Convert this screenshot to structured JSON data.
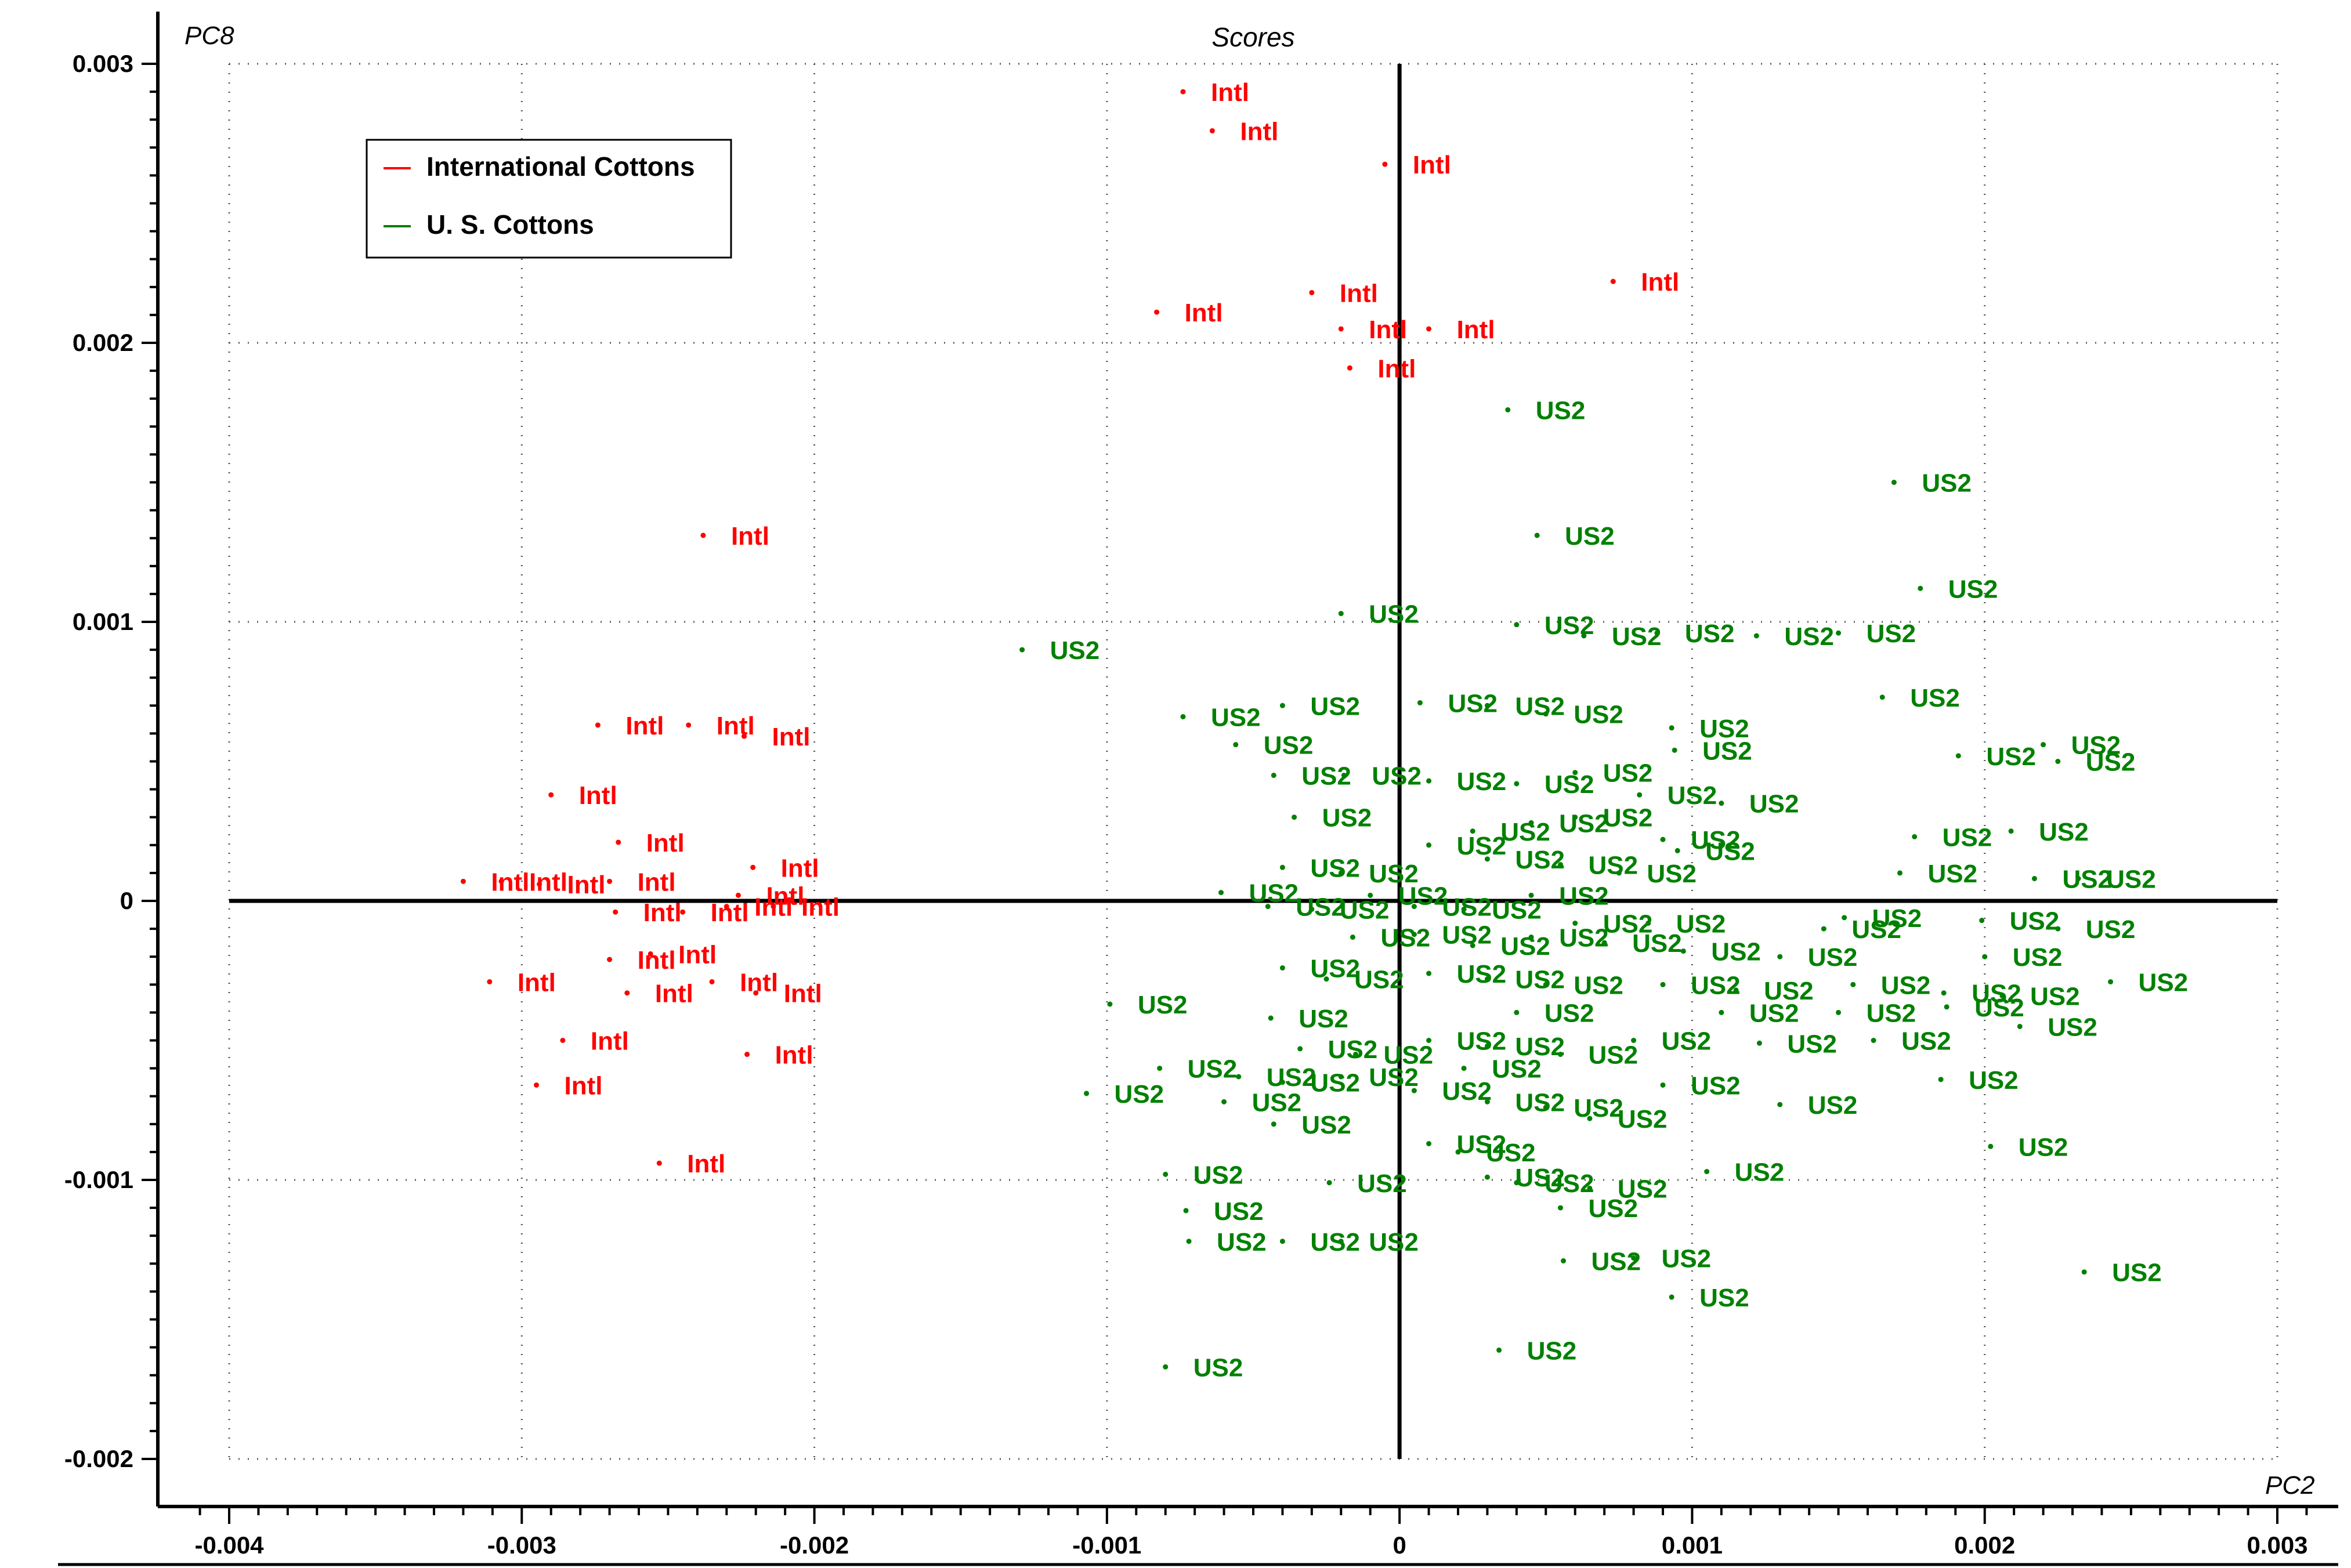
{
  "chart_data": {
    "type": "scatter",
    "title": "Scores",
    "xlabel": "PC2",
    "ylabel": "PC8",
    "xlim": [
      -0.004,
      0.003
    ],
    "ylim": [
      -0.002,
      0.003
    ],
    "grid": true,
    "legend_position": "top-left",
    "x_ticks": [
      "-0.004",
      "-0.003",
      "-0.002",
      "-0.001",
      "0",
      "0.001",
      "0.002",
      "0.003"
    ],
    "x_tick_values": [
      -0.004,
      -0.003,
      -0.002,
      -0.001,
      0,
      0.001,
      0.002,
      0.003
    ],
    "y_ticks": [
      "0.003",
      "0.002",
      "0.001",
      "0",
      "-0.001",
      "-0.002"
    ],
    "y_tick_values": [
      0.003,
      0.002,
      0.001,
      0,
      -0.001,
      -0.002
    ],
    "series": [
      {
        "name": "International Cottons",
        "label": "Intl",
        "color": "#ff0000",
        "points": [
          [
            -0.00074,
            0.0029
          ],
          [
            -0.00064,
            0.00276
          ],
          [
            -5e-05,
            0.00264
          ],
          [
            0.00073,
            0.00222
          ],
          [
            -0.0003,
            0.00218
          ],
          [
            -0.00083,
            0.00211
          ],
          [
            -0.0002,
            0.00205
          ],
          [
            0.0001,
            0.00205
          ],
          [
            -0.00017,
            0.00191
          ],
          [
            -0.00238,
            0.00131
          ],
          [
            -0.00274,
            0.00063
          ],
          [
            -0.00243,
            0.00063
          ],
          [
            -0.00224,
            0.00059
          ],
          [
            -0.0029,
            0.00038
          ],
          [
            -0.00267,
            0.00021
          ],
          [
            -0.00221,
            0.00012
          ],
          [
            -0.0032,
            7e-05
          ],
          [
            -0.00307,
            7e-05
          ],
          [
            -0.00294,
            6e-05
          ],
          [
            -0.0027,
            7e-05
          ],
          [
            -0.00226,
            2e-05
          ],
          [
            -0.00268,
            -4e-05
          ],
          [
            -0.00245,
            -4e-05
          ],
          [
            -0.0023,
            -2e-05
          ],
          [
            -0.00214,
            -2e-05
          ],
          [
            -0.0027,
            -0.00021
          ],
          [
            -0.00256,
            -0.00019
          ],
          [
            -0.00311,
            -0.00029
          ],
          [
            -0.00264,
            -0.00033
          ],
          [
            -0.00235,
            -0.00029
          ],
          [
            -0.0022,
            -0.00033
          ],
          [
            -0.00286,
            -0.0005
          ],
          [
            -0.00223,
            -0.00055
          ],
          [
            -0.00295,
            -0.00066
          ],
          [
            -0.00253,
            -0.00094
          ]
        ]
      },
      {
        "name": "U. S. Cottons",
        "label": "US2",
        "color": "#008000",
        "points": [
          [
            0.00037,
            0.00176
          ],
          [
            0.00169,
            0.0015
          ],
          [
            0.00047,
            0.00131
          ],
          [
            0.00178,
            0.00112
          ],
          [
            -0.00129,
            0.0009
          ],
          [
            -0.0002,
            0.00103
          ],
          [
            0.0004,
            0.00099
          ],
          [
            0.00063,
            0.00095
          ],
          [
            0.00088,
            0.00096
          ],
          [
            0.00122,
            0.00095
          ],
          [
            0.0015,
            0.00096
          ],
          [
            0.00165,
            0.00073
          ],
          [
            -0.00074,
            0.00066
          ],
          [
            -0.0004,
            0.0007
          ],
          [
            7e-05,
            0.00071
          ],
          [
            0.0003,
            0.0007
          ],
          [
            0.0005,
            0.00067
          ],
          [
            0.00093,
            0.00062
          ],
          [
            0.00094,
            0.00054
          ],
          [
            -0.00056,
            0.00056
          ],
          [
            0.00191,
            0.00052
          ],
          [
            0.0022,
            0.00056
          ],
          [
            0.00225,
            0.0005
          ],
          [
            -0.00043,
            0.00045
          ],
          [
            -0.00019,
            0.00045
          ],
          [
            0.0001,
            0.00043
          ],
          [
            0.0004,
            0.00042
          ],
          [
            0.0006,
            0.00046
          ],
          [
            0.00082,
            0.00038
          ],
          [
            0.0011,
            0.00035
          ],
          [
            -0.00036,
            0.0003
          ],
          [
            0.00025,
            0.00025
          ],
          [
            0.00045,
            0.00028
          ],
          [
            0.0006,
            0.0003
          ],
          [
            0.0009,
            0.00022
          ],
          [
            0.00095,
            0.00018
          ],
          [
            0.00176,
            0.00023
          ],
          [
            0.00209,
            0.00025
          ],
          [
            0.0001,
            0.0002
          ],
          [
            0.0003,
            0.00015
          ],
          [
            0.00055,
            0.00013
          ],
          [
            0.00075,
            0.0001
          ],
          [
            -0.0004,
            0.00012
          ],
          [
            -0.0002,
            0.0001
          ],
          [
            0.00171,
            0.0001
          ],
          [
            0.00217,
            8e-05
          ],
          [
            0.00232,
            8e-05
          ],
          [
            -0.00061,
            3e-05
          ],
          [
            -0.00045,
            -2e-05
          ],
          [
            -0.0003,
            -3e-05
          ],
          [
            -0.0001,
            2e-05
          ],
          [
            5e-05,
            -2e-05
          ],
          [
            0.00022,
            -3e-05
          ],
          [
            0.00045,
            2e-05
          ],
          [
            0.0006,
            -8e-05
          ],
          [
            0.00085,
            -8e-05
          ],
          [
            0.00145,
            -0.0001
          ],
          [
            0.00152,
            -6e-05
          ],
          [
            0.00199,
            -7e-05
          ],
          [
            0.00225,
            -0.0001
          ],
          [
            -0.00016,
            -0.00013
          ],
          [
            5e-05,
            -0.00012
          ],
          [
            0.00025,
            -0.00016
          ],
          [
            0.00045,
            -0.00013
          ],
          [
            0.0007,
            -0.00015
          ],
          [
            0.00097,
            -0.00018
          ],
          [
            0.0013,
            -0.0002
          ],
          [
            0.002,
            -0.0002
          ],
          [
            -0.0004,
            -0.00024
          ],
          [
            -0.00025,
            -0.00028
          ],
          [
            0.0001,
            -0.00026
          ],
          [
            0.0003,
            -0.00028
          ],
          [
            0.0005,
            -0.0003
          ],
          [
            0.0009,
            -0.0003
          ],
          [
            0.00115,
            -0.00032
          ],
          [
            0.00155,
            -0.0003
          ],
          [
            0.00186,
            -0.00033
          ],
          [
            0.00206,
            -0.00034
          ],
          [
            0.00243,
            -0.00029
          ],
          [
            -0.00099,
            -0.00037
          ],
          [
            -0.00044,
            -0.00042
          ],
          [
            0.0004,
            -0.0004
          ],
          [
            0.0011,
            -0.0004
          ],
          [
            0.0015,
            -0.0004
          ],
          [
            0.00187,
            -0.00038
          ],
          [
            0.00212,
            -0.00045
          ],
          [
            -0.00034,
            -0.00053
          ],
          [
            -0.00015,
            -0.00055
          ],
          [
            0.0001,
            -0.0005
          ],
          [
            0.0003,
            -0.00052
          ],
          [
            0.00055,
            -0.00055
          ],
          [
            0.0008,
            -0.0005
          ],
          [
            0.00123,
            -0.00051
          ],
          [
            0.00162,
            -0.0005
          ],
          [
            -0.00082,
            -0.0006
          ],
          [
            -0.00055,
            -0.00063
          ],
          [
            -0.0004,
            -0.00065
          ],
          [
            -0.0002,
            -0.00063
          ],
          [
            5e-05,
            -0.00068
          ],
          [
            0.00022,
            -0.0006
          ],
          [
            0.0009,
            -0.00066
          ],
          [
            0.00185,
            -0.00064
          ],
          [
            -0.00107,
            -0.00069
          ],
          [
            -0.0006,
            -0.00072
          ],
          [
            -0.00043,
            -0.0008
          ],
          [
            0.0003,
            -0.00072
          ],
          [
            0.0005,
            -0.00074
          ],
          [
            0.00065,
            -0.00078
          ],
          [
            0.0013,
            -0.00073
          ],
          [
            0.00202,
            -0.00088
          ],
          [
            0.0001,
            -0.00087
          ],
          [
            0.0002,
            -0.0009
          ],
          [
            -0.0008,
            -0.00098
          ],
          [
            -0.00024,
            -0.00101
          ],
          [
            0.0004,
            -0.00101
          ],
          [
            0.00065,
            -0.00103
          ],
          [
            0.00105,
            -0.00097
          ],
          [
            -0.00073,
            -0.00111
          ],
          [
            0.0003,
            -0.00099
          ],
          [
            0.00055,
            -0.0011
          ],
          [
            -0.00072,
            -0.00122
          ],
          [
            -0.0004,
            -0.00122
          ],
          [
            -0.0002,
            -0.00122
          ],
          [
            0.00056,
            -0.00129
          ],
          [
            0.0008,
            -0.00128
          ],
          [
            0.00234,
            -0.00133
          ],
          [
            0.00093,
            -0.00142
          ],
          [
            0.00034,
            -0.00161
          ],
          [
            -0.0008,
            -0.00167
          ]
        ]
      }
    ]
  }
}
